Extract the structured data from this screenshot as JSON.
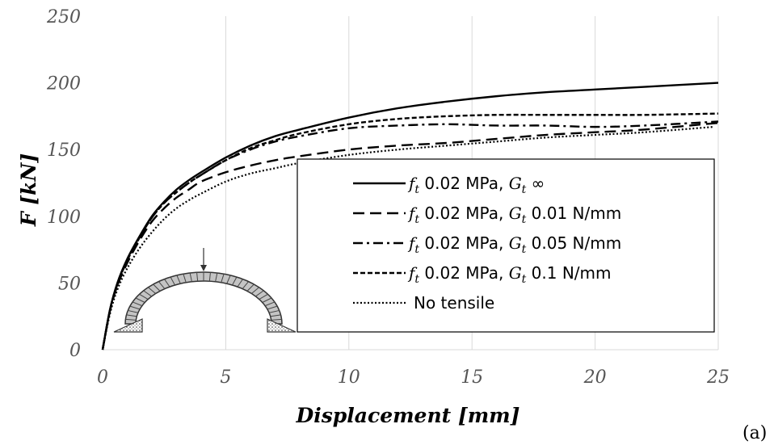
{
  "panel_label": "(a)",
  "chart_data": {
    "type": "line",
    "title": "",
    "xlabel": "Displacement [mm]",
    "ylabel": "F [kN]",
    "xlim": [
      0,
      25
    ],
    "ylim": [
      0,
      250
    ],
    "xticks": [
      0,
      5,
      10,
      15,
      20,
      25
    ],
    "yticks": [
      0,
      50,
      100,
      150,
      200,
      250
    ],
    "grid": "vertical",
    "legend_position": "bottom-right",
    "series": [
      {
        "id": "ft-ginf",
        "legend": {
          "prefix": "f",
          "sub1": "t",
          "mid": " 0.02 MPa, ",
          "g": "G",
          "sub2": "t",
          "suffix": " ∞"
        },
        "style": "solid",
        "x": [
          0,
          0.3,
          0.6,
          1,
          1.5,
          2,
          2.5,
          3,
          3.5,
          4,
          5,
          6,
          7,
          8,
          10,
          12,
          14,
          16,
          18,
          20,
          22,
          25
        ],
        "y": [
          0,
          30,
          50,
          68,
          85,
          100,
          111,
          120,
          127,
          133,
          144,
          153,
          160,
          165,
          174,
          181,
          186,
          190,
          193,
          195,
          197,
          200
        ]
      },
      {
        "id": "ft-g001",
        "legend": {
          "prefix": "f",
          "sub1": "t",
          "mid": " 0.02 MPa, ",
          "g": "G",
          "sub2": "t",
          "suffix": " 0.01 N/mm"
        },
        "style": "longdash",
        "x": [
          0,
          0.3,
          0.6,
          1,
          1.5,
          2,
          2.5,
          3,
          3.5,
          4,
          5,
          6,
          7,
          8,
          10,
          12,
          14,
          16,
          18,
          20,
          22,
          25
        ],
        "y": [
          0,
          29,
          48,
          65,
          82,
          96,
          106,
          114,
          120,
          126,
          133,
          138,
          142,
          145,
          150,
          153,
          155,
          158,
          161,
          163,
          165,
          170
        ]
      },
      {
        "id": "ft-g005",
        "legend": {
          "prefix": "f",
          "sub1": "t",
          "mid": " 0.02 MPa, ",
          "g": "G",
          "sub2": "t",
          "suffix": " 0.05 N/mm"
        },
        "style": "dashdot",
        "x": [
          0,
          0.3,
          0.6,
          1,
          1.5,
          2,
          2.5,
          3,
          3.5,
          4,
          5,
          6,
          7,
          8,
          10,
          12,
          14,
          16,
          18,
          20,
          22,
          25
        ],
        "y": [
          0,
          30,
          49,
          67,
          84,
          99,
          110,
          118,
          125,
          131,
          142,
          150,
          156,
          160,
          166,
          168,
          169,
          168,
          168,
          167,
          168,
          171
        ]
      },
      {
        "id": "ft-g01",
        "legend": {
          "prefix": "f",
          "sub1": "t",
          "mid": " 0.02 MPa, ",
          "g": "G",
          "sub2": "t",
          "suffix": " 0.1 N/mm"
        },
        "style": "shortdash",
        "x": [
          0,
          0.3,
          0.6,
          1,
          1.5,
          2,
          2.5,
          3,
          3.5,
          4,
          5,
          6,
          7,
          8,
          10,
          12,
          14,
          16,
          18,
          20,
          22,
          25
        ],
        "y": [
          0,
          30,
          49,
          67,
          84,
          99,
          110,
          118,
          125,
          131,
          142,
          151,
          157,
          162,
          169,
          173,
          175,
          176,
          176,
          176,
          176,
          177
        ]
      },
      {
        "id": "no-tensile",
        "legend": {
          "text": "No tensile"
        },
        "style": "dotted",
        "x": [
          0,
          0.3,
          0.6,
          1,
          1.5,
          2,
          2.5,
          3,
          3.5,
          4,
          5,
          6,
          7,
          8,
          10,
          12,
          14,
          16,
          18,
          20,
          22,
          24.8
        ],
        "y": [
          0,
          27,
          45,
          61,
          76,
          88,
          98,
          106,
          112,
          117,
          126,
          132,
          136,
          140,
          146,
          150,
          153,
          156,
          159,
          161,
          163,
          167
        ]
      }
    ]
  }
}
